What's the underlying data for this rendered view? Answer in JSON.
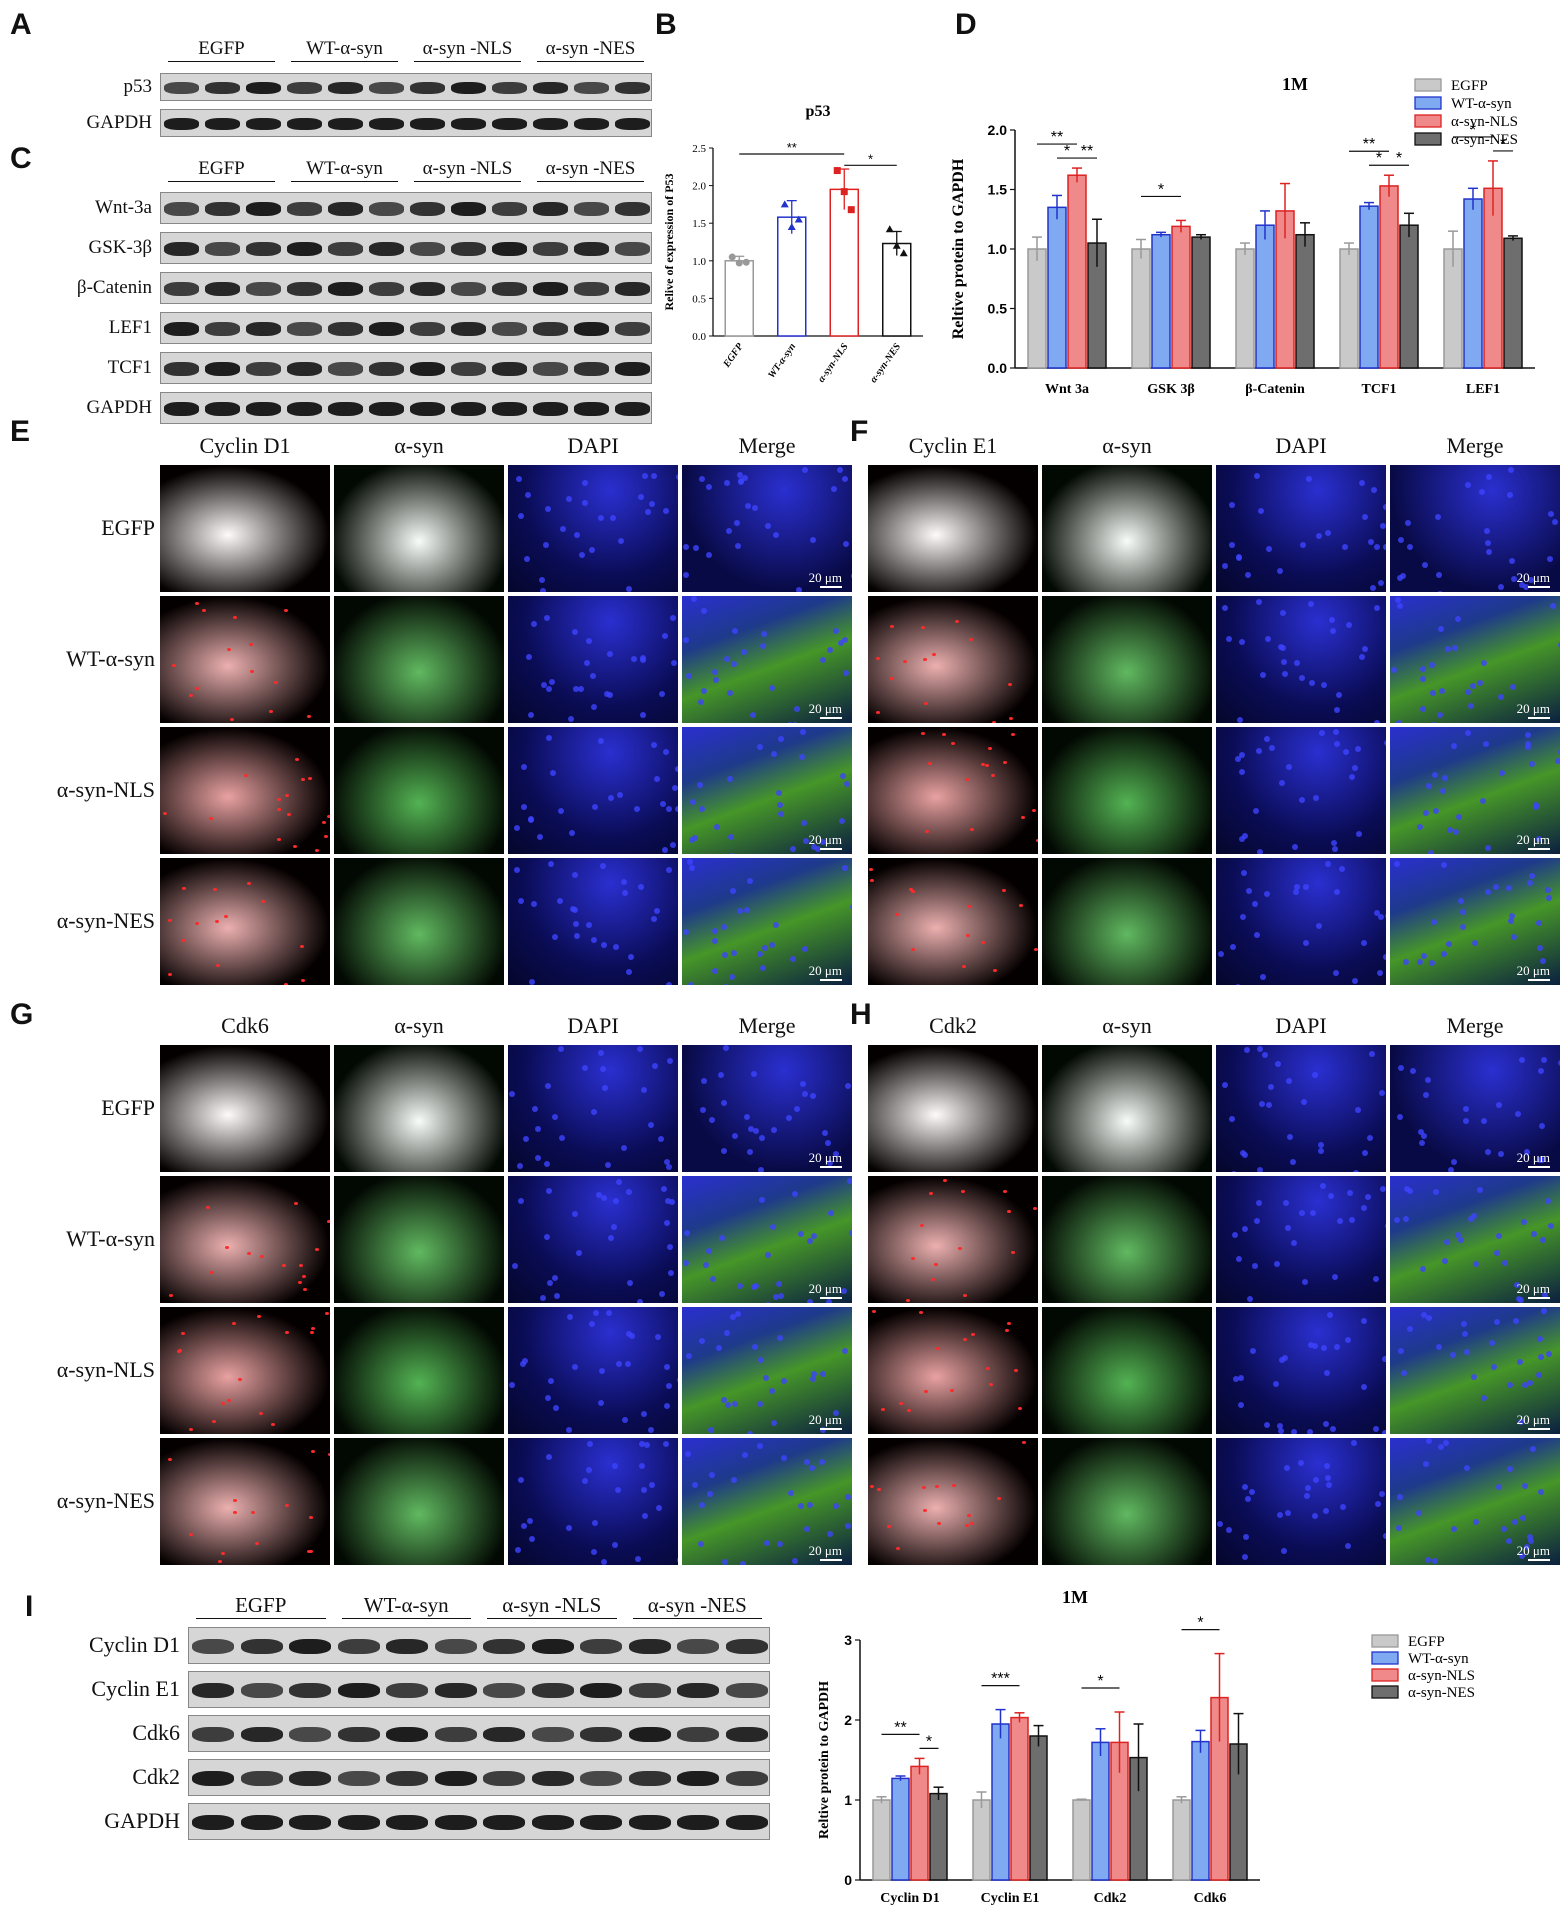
{
  "panel_letters": {
    "A": "A",
    "B": "B",
    "C": "C",
    "D": "D",
    "E": "E",
    "F": "F",
    "G": "G",
    "H": "H",
    "I": "I"
  },
  "blot_groups": [
    "EGFP",
    "WT-α-syn",
    "α-syn -NLS",
    "α-syn -NES"
  ],
  "blotA": {
    "rows": [
      "p53",
      "GAPDH"
    ]
  },
  "blotC": {
    "rows": [
      "Wnt-3a",
      "GSK-3β",
      "β-Catenin",
      "LEF1",
      "TCF1",
      "GAPDH"
    ]
  },
  "blotI": {
    "rows": [
      "Cyclin D1",
      "Cyclin E1",
      "Cdk6",
      "Cdk2",
      "GAPDH"
    ]
  },
  "if_rows": [
    "EGFP",
    "WT-α-syn",
    "α-syn-NLS",
    "α-syn-NES"
  ],
  "if_scale": "20 μm",
  "panelE": {
    "cols": [
      "Cyclin D1",
      "α-syn",
      "DAPI",
      "Merge"
    ]
  },
  "panelF": {
    "cols": [
      "Cyclin E1",
      "α-syn",
      "DAPI",
      "Merge"
    ]
  },
  "panelG": {
    "cols": [
      "Cdk6",
      "α-syn",
      "DAPI",
      "Merge"
    ]
  },
  "panelH": {
    "cols": [
      "Cdk2",
      "α-syn",
      "DAPI",
      "Merge"
    ]
  },
  "colors": {
    "EGFP": "#c9c9c9",
    "WT": "#7fa9f0",
    "NLS": "#f08a8a",
    "NES": "#6e6e6e",
    "WT_edge": "#2233cc",
    "NLS_edge": "#dd2222",
    "NES_edge": "#111111",
    "EGFP_edge": "#999999"
  },
  "chart_data": [
    {
      "id": "B",
      "type": "bar",
      "title": "p53",
      "ylabel": "Relive of expression of P53",
      "categories": [
        "EGFP",
        "WT-α-syn",
        "α-syn-NLS",
        "α-syn-NES"
      ],
      "values": [
        1.0,
        1.58,
        1.95,
        1.23
      ],
      "errors": [
        0.06,
        0.22,
        0.27,
        0.16
      ],
      "points": [
        [
          1.05,
          0.97,
          0.98
        ],
        [
          1.75,
          1.45,
          1.55
        ],
        [
          2.2,
          1.92,
          1.68
        ],
        [
          1.42,
          1.2,
          1.1
        ]
      ],
      "ylim": [
        0,
        2.5
      ],
      "yticks": [
        "0.0",
        "0.5",
        "1.0",
        "1.5",
        "2.0",
        "2.5"
      ],
      "significance": [
        [
          "EGFP",
          "α-syn-NLS",
          "**"
        ],
        [
          "α-syn-NLS",
          "α-syn-NES",
          "*"
        ]
      ]
    },
    {
      "id": "D",
      "type": "bar",
      "title": "1M",
      "ylabel": "Reltive protein to GAPDH",
      "categories": [
        "Wnt 3a",
        "GSK 3β",
        "β-Catenin",
        "TCF1",
        "LEF1"
      ],
      "series": [
        {
          "name": "EGFP",
          "values": [
            1.0,
            1.0,
            1.0,
            1.0,
            1.0
          ],
          "errors": [
            0.1,
            0.08,
            0.05,
            0.05,
            0.15
          ]
        },
        {
          "name": "WT-α-syn",
          "values": [
            1.35,
            1.12,
            1.2,
            1.36,
            1.42
          ],
          "errors": [
            0.1,
            0.02,
            0.12,
            0.03,
            0.09
          ]
        },
        {
          "name": "α-syn-NLS",
          "values": [
            1.62,
            1.19,
            1.32,
            1.53,
            1.51
          ],
          "errors": [
            0.06,
            0.05,
            0.23,
            0.09,
            0.23
          ]
        },
        {
          "name": "α-syn-NES",
          "values": [
            1.05,
            1.1,
            1.12,
            1.2,
            1.09
          ],
          "errors": [
            0.2,
            0.02,
            0.1,
            0.1,
            0.02
          ]
        }
      ],
      "ylim": [
        0,
        2.0
      ],
      "yticks": [
        "0.0",
        "0.5",
        "1.0",
        "1.5",
        "2.0"
      ],
      "legend": "top-right",
      "significance": [
        [
          0,
          0,
          2,
          "**"
        ],
        [
          0,
          1,
          2,
          "*"
        ],
        [
          0,
          2,
          3,
          "**"
        ],
        [
          1,
          0,
          2,
          "*"
        ],
        [
          3,
          0,
          2,
          "**"
        ],
        [
          3,
          1,
          2,
          "*"
        ],
        [
          3,
          2,
          3,
          "*"
        ],
        [
          4,
          0,
          2,
          "*"
        ],
        [
          4,
          2,
          3,
          "*"
        ]
      ]
    },
    {
      "id": "I",
      "type": "bar",
      "title": "1M",
      "ylabel": "Reltive protein to GAPDH",
      "categories": [
        "Cyclin D1",
        "Cyclin E1",
        "Cdk2",
        "Cdk6"
      ],
      "series": [
        {
          "name": "EGFP",
          "values": [
            1.0,
            1.0,
            1.0,
            1.0
          ],
          "errors": [
            0.04,
            0.1,
            0.01,
            0.04
          ]
        },
        {
          "name": "WT-α-syn",
          "values": [
            1.27,
            1.95,
            1.72,
            1.73
          ],
          "errors": [
            0.03,
            0.18,
            0.17,
            0.14
          ]
        },
        {
          "name": "α-syn-NLS",
          "values": [
            1.42,
            2.03,
            1.72,
            2.28
          ],
          "errors": [
            0.1,
            0.06,
            0.38,
            0.55
          ]
        },
        {
          "name": "α-syn-NES",
          "values": [
            1.08,
            1.8,
            1.53,
            1.7
          ],
          "errors": [
            0.08,
            0.13,
            0.42,
            0.38
          ]
        }
      ],
      "ylim": [
        0,
        3
      ],
      "yticks": [
        "0",
        "1",
        "2",
        "3"
      ],
      "legend": "right",
      "significance": [
        [
          0,
          0,
          2,
          "**"
        ],
        [
          0,
          2,
          3,
          "*"
        ],
        [
          1,
          0,
          2,
          "***"
        ],
        [
          2,
          0,
          2,
          "*"
        ],
        [
          3,
          0,
          2,
          "*"
        ]
      ]
    }
  ]
}
